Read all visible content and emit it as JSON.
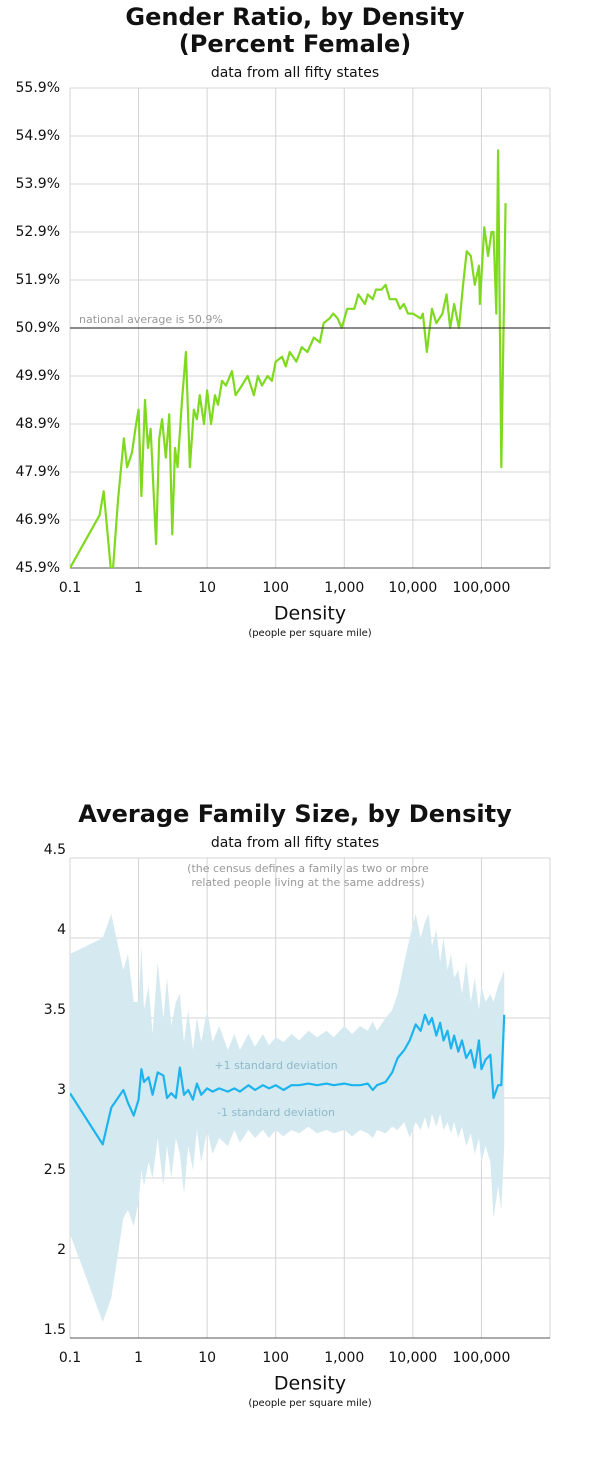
{
  "chart_data": [
    {
      "type": "line",
      "title": [
        "Gender Ratio, by Density",
        "(Percent Female)"
      ],
      "subtitle": "data from all fifty states",
      "x_label": "Density",
      "x_sublabel": "(people per square mile)",
      "xscale": "log",
      "xlim": [
        0.1,
        1000000
      ],
      "xticks": [
        0.1,
        1,
        10,
        100,
        {
          "value": 1000,
          "label": "1,000"
        },
        {
          "value": 10000,
          "label": "10,000"
        },
        {
          "value": 100000,
          "label": "100,000"
        }
      ],
      "ylim": [
        45.9,
        55.9
      ],
      "yticks": [
        {
          "value": 45.9,
          "label": "45.9%"
        },
        {
          "value": 46.9,
          "label": "46.9%"
        },
        {
          "value": 47.9,
          "label": "47.9%"
        },
        {
          "value": 48.9,
          "label": "48.9%"
        },
        {
          "value": 49.9,
          "label": "49.9%"
        },
        {
          "value": 50.9,
          "label": "50.9%"
        },
        {
          "value": 51.9,
          "label": "51.9%"
        },
        {
          "value": 52.9,
          "label": "52.9%"
        },
        {
          "value": 53.9,
          "label": "53.9%"
        },
        {
          "value": 54.9,
          "label": "54.9%"
        },
        {
          "value": 55.9,
          "label": "55.9%"
        }
      ],
      "grid": true,
      "color": "#7fd91f",
      "reference_line": {
        "value": 50.9,
        "label": "national average is 50.9%"
      },
      "x": [
        0.1,
        0.27,
        0.31,
        0.41,
        0.5,
        0.61,
        0.68,
        0.8,
        0.92,
        1,
        1.1,
        1.24,
        1.37,
        1.5,
        1.8,
        2,
        2.2,
        2.5,
        2.8,
        3.1,
        3.4,
        3.7,
        4.3,
        4.9,
        5.6,
        6.4,
        7.1,
        7.8,
        9,
        10,
        11.4,
        13,
        14.4,
        16.5,
        18.8,
        23,
        26,
        32,
        39,
        48,
        55,
        63,
        76,
        88,
        100,
        124,
        140,
        160,
        200,
        240,
        290,
        360,
        440,
        500,
        610,
        690,
        800,
        920,
        1100,
        1400,
        1600,
        2000,
        2200,
        2600,
        2900,
        3500,
        4000,
        4600,
        5700,
        6500,
        7400,
        8500,
        10000,
        13000,
        14000,
        16000,
        19000,
        22000,
        27000,
        31000,
        35000,
        40000,
        47000,
        54000,
        61000,
        70000,
        80000,
        92000,
        95000,
        110000,
        125000,
        140000,
        150000,
        165000,
        175000,
        195000,
        225000
      ],
      "values": [
        45.9,
        47.0,
        47.5,
        45.6,
        47.3,
        48.6,
        48.0,
        48.3,
        48.9,
        49.2,
        47.4,
        49.4,
        48.4,
        48.8,
        46.4,
        48.6,
        49.0,
        48.2,
        49.1,
        46.6,
        48.4,
        48.0,
        49.4,
        50.4,
        48.0,
        49.2,
        49.0,
        49.5,
        48.9,
        49.6,
        48.9,
        49.5,
        49.3,
        49.8,
        49.7,
        50.0,
        49.5,
        49.7,
        49.9,
        49.5,
        49.9,
        49.7,
        49.9,
        49.8,
        50.2,
        50.3,
        50.1,
        50.4,
        50.2,
        50.5,
        50.4,
        50.7,
        50.6,
        51.0,
        51.1,
        51.2,
        51.1,
        50.9,
        51.3,
        51.3,
        51.6,
        51.4,
        51.6,
        51.5,
        51.7,
        51.7,
        51.8,
        51.5,
        51.5,
        51.3,
        51.4,
        51.2,
        51.2,
        51.1,
        51.2,
        50.4,
        51.3,
        51.0,
        51.2,
        51.6,
        50.9,
        51.4,
        50.9,
        51.8,
        52.5,
        52.4,
        51.8,
        52.2,
        51.4,
        53.0,
        52.4,
        52.9,
        52.9,
        51.2,
        54.6,
        48.0,
        53.5
      ]
    },
    {
      "type": "line",
      "title": [
        "Average Family Size, by Density"
      ],
      "subtitle": "data from all fifty states",
      "note": [
        "(the census defines a family as two or more",
        "related people living at the same address)"
      ],
      "x_label": "Density",
      "x_sublabel": "(people per square mile)",
      "xscale": "log",
      "xlim": [
        0.1,
        1000000
      ],
      "xticks": [
        0.1,
        1,
        10,
        100,
        {
          "value": 1000,
          "label": "1,000"
        },
        {
          "value": 10000,
          "label": "10,000"
        },
        {
          "value": 100000,
          "label": "100,000"
        }
      ],
      "ylim": [
        1.5,
        4.5
      ],
      "yticks": [
        1.5,
        2,
        2.5,
        3,
        3.5,
        4,
        4.5
      ],
      "grid": true,
      "color": "#1db4ee",
      "band_color": "#d5e9f0",
      "band_labels": [
        "+1 standard deviation",
        "-1 standard deviation"
      ],
      "x": [
        0.1,
        0.3,
        0.4,
        0.6,
        0.7,
        0.85,
        1,
        1.1,
        1.2,
        1.4,
        1.6,
        1.9,
        2.3,
        2.6,
        3,
        3.5,
        4,
        4.6,
        5.3,
        6.2,
        7.1,
        8.2,
        10,
        12,
        15,
        20,
        25,
        30,
        40,
        50,
        65,
        80,
        100,
        130,
        170,
        220,
        300,
        400,
        550,
        700,
        1000,
        1300,
        1700,
        2200,
        2600,
        3000,
        4000,
        5000,
        6000,
        7500,
        9000,
        11000,
        13000,
        15000,
        17000,
        19000,
        22000,
        25000,
        28000,
        32000,
        36000,
        40000,
        46000,
        52000,
        60000,
        70000,
        80000,
        92000,
        100000,
        115000,
        135000,
        150000,
        175000,
        195000,
        215000
      ],
      "values": [
        3.03,
        2.71,
        2.94,
        3.05,
        2.97,
        2.89,
        2.99,
        3.18,
        3.1,
        3.13,
        3.02,
        3.16,
        3.14,
        3.0,
        3.03,
        3.0,
        3.19,
        3.02,
        3.05,
        2.99,
        3.09,
        3.02,
        3.06,
        3.04,
        3.06,
        3.04,
        3.06,
        3.04,
        3.08,
        3.05,
        3.08,
        3.06,
        3.08,
        3.05,
        3.08,
        3.08,
        3.09,
        3.08,
        3.09,
        3.08,
        3.09,
        3.08,
        3.08,
        3.09,
        3.05,
        3.08,
        3.1,
        3.16,
        3.25,
        3.3,
        3.36,
        3.46,
        3.42,
        3.52,
        3.46,
        3.5,
        3.39,
        3.47,
        3.36,
        3.42,
        3.31,
        3.39,
        3.29,
        3.36,
        3.25,
        3.3,
        3.19,
        3.36,
        3.18,
        3.24,
        3.27,
        3.0,
        3.08,
        3.08,
        3.52
      ],
      "band_upper": [
        3.9,
        4.0,
        4.15,
        3.8,
        3.9,
        3.6,
        3.6,
        3.95,
        3.55,
        3.7,
        3.4,
        3.85,
        3.5,
        3.75,
        3.45,
        3.6,
        3.65,
        3.35,
        3.55,
        3.3,
        3.5,
        3.35,
        3.55,
        3.35,
        3.45,
        3.3,
        3.4,
        3.3,
        3.4,
        3.32,
        3.4,
        3.33,
        3.38,
        3.35,
        3.4,
        3.36,
        3.42,
        3.38,
        3.42,
        3.38,
        3.45,
        3.4,
        3.45,
        3.42,
        3.48,
        3.42,
        3.5,
        3.55,
        3.65,
        3.85,
        4.0,
        4.15,
        4.0,
        4.1,
        4.15,
        3.95,
        4.05,
        3.85,
        4.0,
        3.8,
        3.9,
        3.75,
        3.8,
        3.65,
        3.85,
        3.6,
        3.75,
        3.55,
        3.7,
        3.6,
        3.65,
        3.6,
        3.7,
        3.75,
        3.8
      ],
      "band_lower": [
        2.15,
        1.6,
        1.75,
        2.25,
        2.3,
        2.2,
        2.35,
        2.55,
        2.45,
        2.6,
        2.5,
        2.75,
        2.45,
        2.7,
        2.5,
        2.75,
        2.65,
        2.4,
        2.7,
        2.55,
        2.8,
        2.6,
        2.8,
        2.65,
        2.75,
        2.7,
        2.8,
        2.72,
        2.8,
        2.75,
        2.8,
        2.75,
        2.8,
        2.76,
        2.8,
        2.78,
        2.82,
        2.78,
        2.8,
        2.78,
        2.8,
        2.76,
        2.8,
        2.78,
        2.75,
        2.8,
        2.78,
        2.82,
        2.8,
        2.85,
        2.75,
        2.85,
        2.8,
        2.88,
        2.8,
        2.9,
        2.82,
        2.9,
        2.8,
        2.85,
        2.78,
        2.85,
        2.75,
        2.82,
        2.7,
        2.78,
        2.65,
        2.75,
        2.6,
        2.7,
        2.6,
        2.25,
        2.45,
        2.3,
        2.7
      ]
    }
  ]
}
